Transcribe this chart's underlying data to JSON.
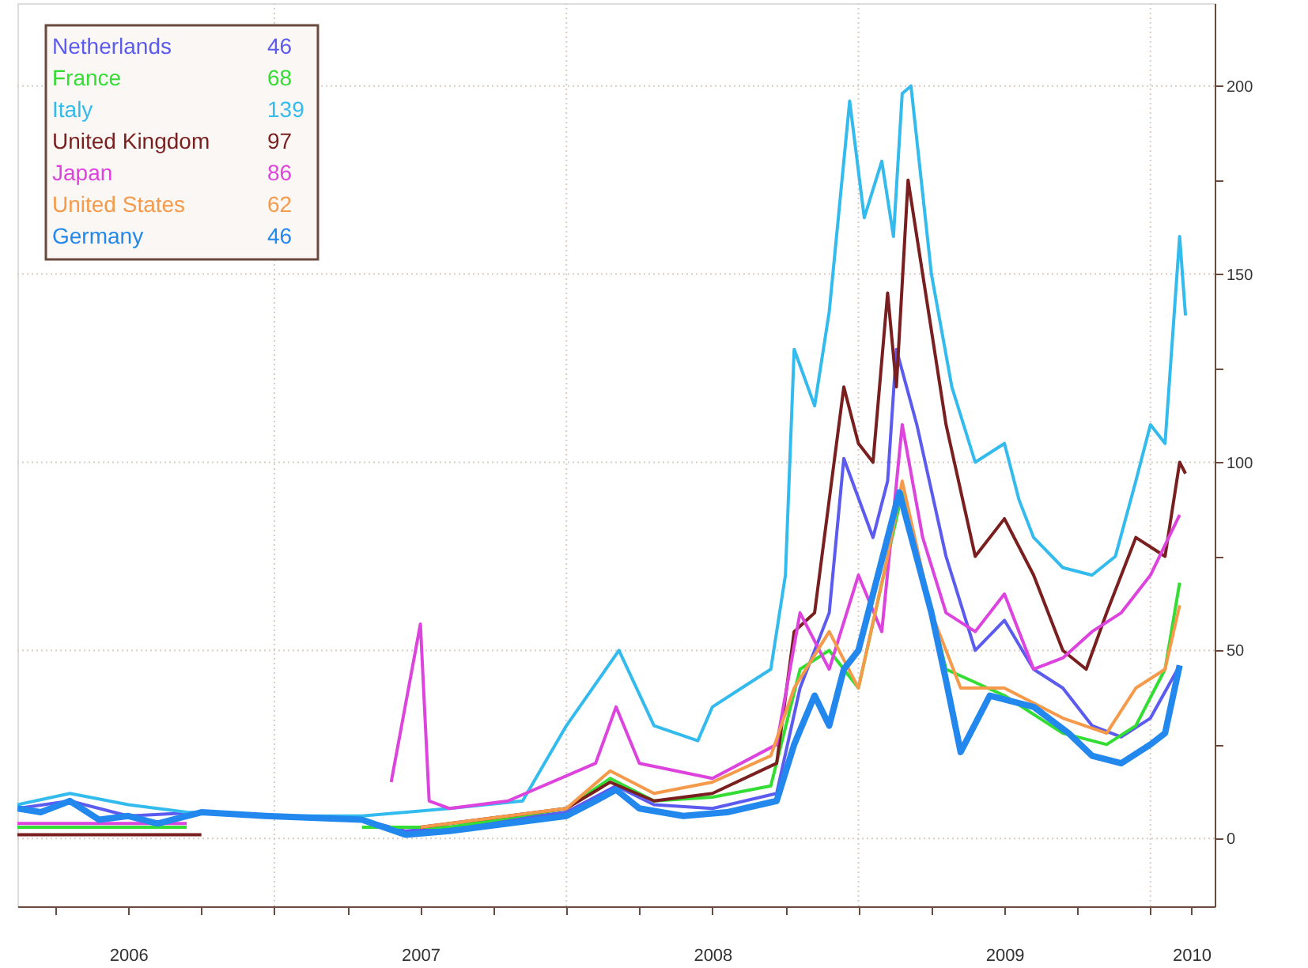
{
  "chart_data": {
    "type": "line",
    "legend": "top left",
    "grid": true,
    "marker": "none",
    "line_style": "solid",
    "annotations": [
      "46",
      "68",
      "139",
      "97",
      "86",
      "62",
      "46"
    ],
    "xlim": [
      2006.12,
      2010.22
    ],
    "ylim": [
      -18,
      222
    ],
    "xticks": [
      {
        "value": 2006.25,
        "label": null
      },
      {
        "value": 2006.5,
        "label": "2006"
      },
      {
        "value": 2006.75,
        "label": null
      },
      {
        "value": 2007,
        "label": null
      },
      {
        "value": 2007.25,
        "label": null
      },
      {
        "value": 2007.5,
        "label": "2007"
      },
      {
        "value": 2007.75,
        "label": null
      },
      {
        "value": 2008,
        "label": null
      },
      {
        "value": 2008.25,
        "label": null
      },
      {
        "value": 2008.5,
        "label": "2008"
      },
      {
        "value": 2008.75,
        "label": null
      },
      {
        "value": 2009,
        "label": null
      },
      {
        "value": 2009.25,
        "label": null
      },
      {
        "value": 2009.5,
        "label": "2009"
      },
      {
        "value": 2009.75,
        "label": null
      },
      {
        "value": 2010,
        "label": null
      },
      {
        "value": 2010.14,
        "label": "2010"
      }
    ],
    "yticks": [
      0,
      {
        "value": 25,
        "label": null
      },
      50,
      {
        "value": 75,
        "label": null
      },
      100,
      {
        "value": 125,
        "label": null
      },
      150,
      {
        "value": 175,
        "label": null
      },
      200
    ],
    "series": [
      {
        "name": "Netherlands",
        "color": "#5b5bf0",
        "x": [
          2006.12,
          2006.3,
          2006.5,
          2006.75,
          2006.97,
          2007.3,
          2007.45,
          2007.6,
          2007.8,
          2008.0,
          2008.17,
          2008.3,
          2008.5,
          2008.72,
          2008.8,
          2008.9,
          2008.95,
          2009.05,
          2009.1,
          2009.13,
          2009.2,
          2009.3,
          2009.4,
          2009.5,
          2009.6,
          2009.7,
          2009.8,
          2009.9,
          2010.0,
          2010.1
        ],
        "values": [
          8,
          10,
          6,
          7,
          null,
          5,
          2,
          3,
          5,
          7,
          14,
          9,
          8,
          12,
          40,
          60,
          101,
          80,
          95,
          130,
          110,
          75,
          50,
          58,
          45,
          40,
          30,
          27,
          32,
          46
        ]
      },
      {
        "name": "France",
        "color": "#33dd33",
        "x": [
          2006.12,
          2006.4,
          2006.7,
          2006.8,
          2007.3,
          2007.6,
          2008.0,
          2008.15,
          2008.3,
          2008.5,
          2008.7,
          2008.8,
          2008.9,
          2009.0,
          2009.15,
          2009.3,
          2009.5,
          2009.7,
          2009.85,
          2009.95,
          2010.05,
          2010.1
        ],
        "values": [
          3,
          3,
          3,
          null,
          3,
          3,
          8,
          16,
          10,
          11,
          14,
          45,
          50,
          40,
          92,
          45,
          38,
          28,
          25,
          30,
          45,
          68
        ]
      },
      {
        "name": "Italy",
        "color": "#33bbee",
        "x": [
          2006.12,
          2006.3,
          2006.5,
          2006.7,
          2007.0,
          2007.3,
          2007.6,
          2007.85,
          2008.0,
          2008.18,
          2008.3,
          2008.45,
          2008.5,
          2008.6,
          2008.7,
          2008.75,
          2008.78,
          2008.85,
          2008.9,
          2008.97,
          2009.02,
          2009.08,
          2009.12,
          2009.15,
          2009.18,
          2009.25,
          2009.32,
          2009.4,
          2009.5,
          2009.55,
          2009.6,
          2009.7,
          2009.8,
          2009.88,
          2009.95,
          2010.0,
          2010.05,
          2010.1,
          2010.12
        ],
        "values": [
          9,
          12,
          9,
          7,
          6,
          6,
          8,
          10,
          30,
          50,
          30,
          26,
          35,
          40,
          45,
          70,
          130,
          115,
          140,
          196,
          165,
          180,
          160,
          198,
          200,
          150,
          120,
          100,
          105,
          90,
          80,
          72,
          70,
          75,
          95,
          110,
          105,
          160,
          139
        ]
      },
      {
        "name": "United Kingdom",
        "color": "#7a1f1f",
        "x": [
          2006.12,
          2006.5,
          2006.75,
          2006.8,
          2007.5,
          2008.0,
          2008.15,
          2008.3,
          2008.5,
          2008.72,
          2008.78,
          2008.85,
          2008.95,
          2009.0,
          2009.05,
          2009.1,
          2009.13,
          2009.17,
          2009.22,
          2009.3,
          2009.4,
          2009.5,
          2009.6,
          2009.7,
          2009.78,
          2009.85,
          2009.95,
          2010.05,
          2010.1,
          2010.12
        ],
        "values": [
          1,
          1,
          1,
          null,
          3,
          8,
          15,
          10,
          12,
          20,
          55,
          60,
          120,
          105,
          100,
          145,
          120,
          175,
          150,
          110,
          75,
          85,
          70,
          50,
          45,
          60,
          80,
          75,
          100,
          97
        ]
      },
      {
        "name": "Japan",
        "color": "#dd44dd",
        "x": [
          2006.12,
          2006.4,
          2006.7,
          2006.8,
          2007.4,
          2007.5,
          2007.53,
          2007.6,
          2007.8,
          2008.1,
          2008.17,
          2008.25,
          2008.5,
          2008.72,
          2008.8,
          2008.9,
          2009.0,
          2009.08,
          2009.15,
          2009.22,
          2009.3,
          2009.4,
          2009.5,
          2009.6,
          2009.7,
          2009.8,
          2009.9,
          2010.0,
          2010.1
        ],
        "values": [
          4,
          4,
          4,
          null,
          15,
          57,
          10,
          8,
          10,
          20,
          35,
          20,
          16,
          25,
          60,
          45,
          70,
          55,
          110,
          80,
          60,
          55,
          65,
          45,
          48,
          55,
          60,
          70,
          86
        ]
      },
      {
        "name": "United States",
        "color": "#f59a4a",
        "x": [
          2007.5,
          2008.0,
          2008.15,
          2008.3,
          2008.5,
          2008.7,
          2008.78,
          2008.9,
          2009.0,
          2009.1,
          2009.15,
          2009.25,
          2009.35,
          2009.5,
          2009.7,
          2009.85,
          2009.95,
          2010.05,
          2010.1
        ],
        "values": [
          3,
          8,
          18,
          12,
          15,
          22,
          40,
          55,
          40,
          75,
          95,
          60,
          40,
          40,
          32,
          28,
          40,
          45,
          62
        ]
      },
      {
        "name": "Germany",
        "color": "#2288ee",
        "x": [
          2006.12,
          2006.2,
          2006.3,
          2006.4,
          2006.5,
          2006.6,
          2006.75,
          2006.97,
          2007.3,
          2007.45,
          2007.6,
          2007.8,
          2008.0,
          2008.1,
          2008.17,
          2008.25,
          2008.4,
          2008.55,
          2008.72,
          2008.78,
          2008.85,
          2008.9,
          2008.95,
          2009.0,
          2009.14,
          2009.25,
          2009.3,
          2009.35,
          2009.45,
          2009.6,
          2009.72,
          2009.8,
          2009.9,
          2010.0,
          2010.05,
          2010.1
        ],
        "values": [
          8,
          7,
          10,
          5,
          6,
          4,
          7,
          6,
          5,
          1,
          2,
          4,
          6,
          10,
          13,
          8,
          6,
          7,
          10,
          25,
          38,
          30,
          45,
          50,
          92,
          60,
          42,
          23,
          38,
          35,
          28,
          22,
          20,
          25,
          28,
          46
        ]
      }
    ]
  }
}
